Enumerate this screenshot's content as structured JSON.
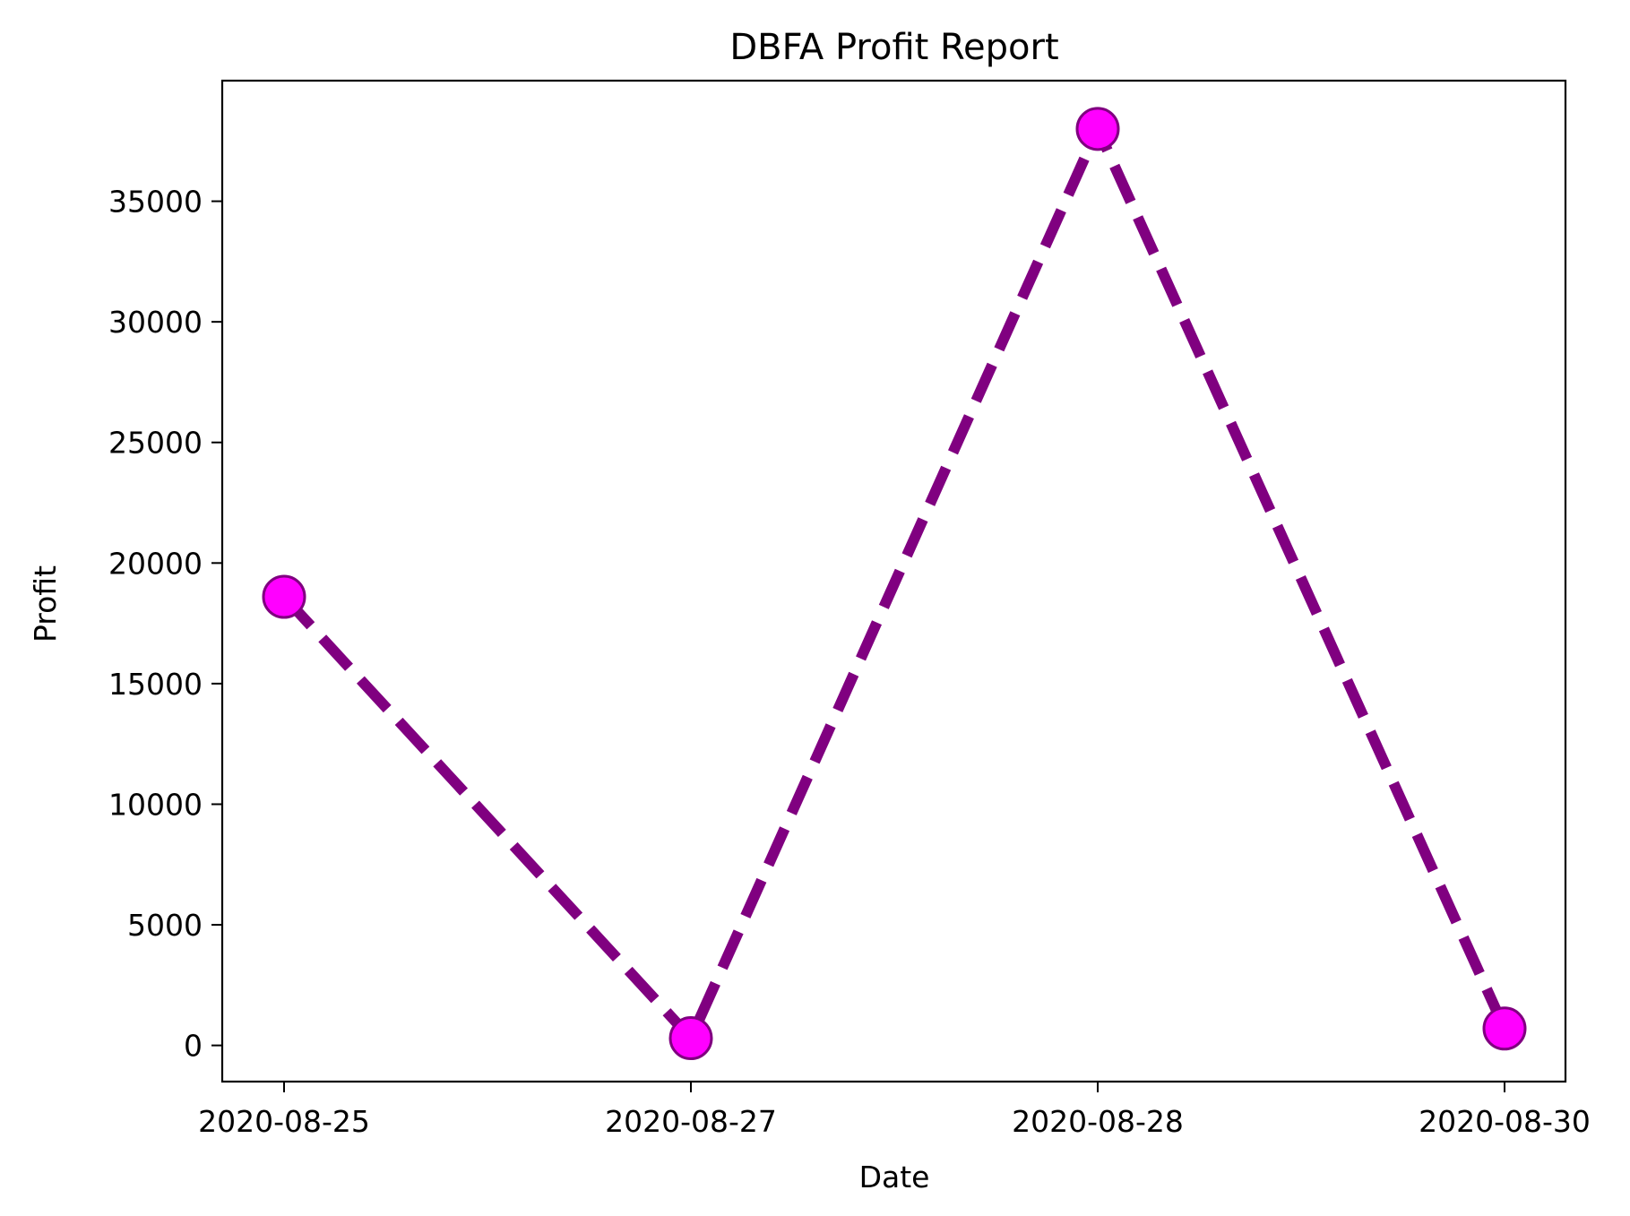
{
  "chart_data": {
    "type": "line",
    "title": "DBFA Profit Report",
    "xlabel": "Date",
    "ylabel": "Profit",
    "categories": [
      "2020-08-25",
      "2020-08-27",
      "2020-08-28",
      "2020-08-30"
    ],
    "series": [
      {
        "values": [
          18600,
          300,
          38000,
          700
        ]
      }
    ],
    "yticks": [
      0,
      5000,
      10000,
      15000,
      20000,
      25000,
      30000,
      35000
    ],
    "ylim": [
      -1500,
      40000
    ],
    "grid": false,
    "line_color": "#800080",
    "line_style": "dashed",
    "marker_color": "#ff00ff",
    "marker_edge_color": "#800080"
  }
}
